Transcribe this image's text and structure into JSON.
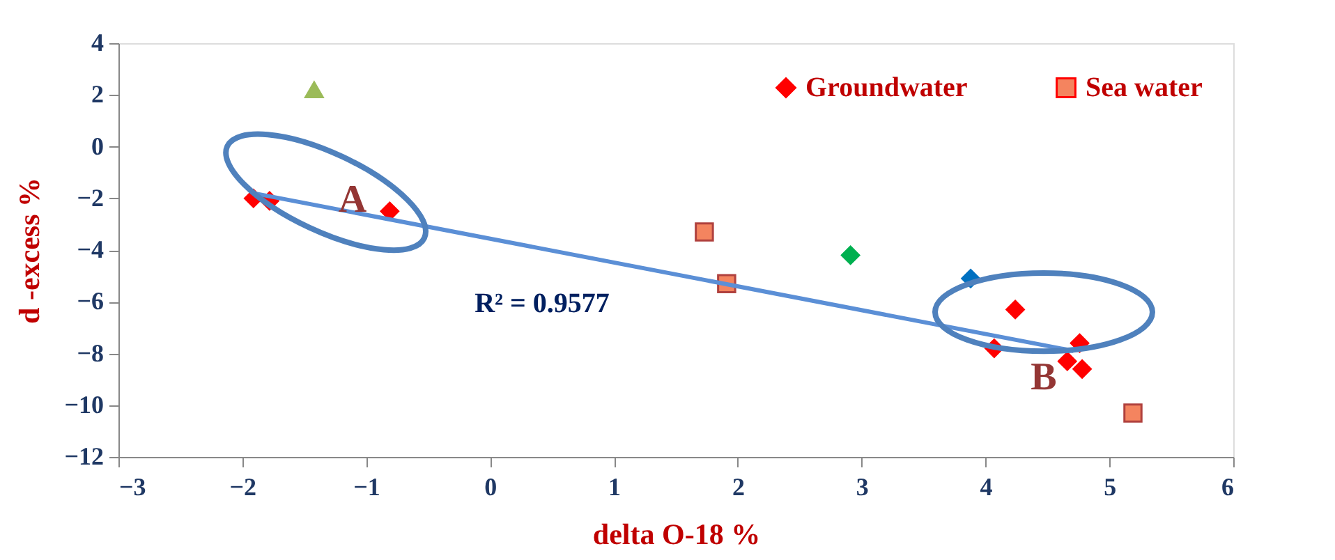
{
  "chart_data": {
    "type": "scatter",
    "xlabel": "delta O-18 %",
    "ylabel": "d -excess %",
    "xlim": [
      -3,
      6
    ],
    "xticks": [
      -3,
      -2,
      -1,
      0,
      1,
      2,
      3,
      4,
      5,
      6
    ],
    "ylim": [
      -12,
      4
    ],
    "yticks": [
      -12,
      -10,
      -8,
      -6,
      -4,
      -2,
      0,
      2,
      4
    ],
    "grid": false,
    "legend": "top right",
    "series": [
      {
        "name": "Groundwater",
        "color": "#ff0000",
        "marker": "diamond",
        "x": [
          -1.91,
          -1.78,
          -0.81,
          4.07,
          4.24,
          4.76,
          4.66,
          4.78
        ],
        "values": [
          -2.0,
          -2.1,
          -2.5,
          -7.8,
          -6.3,
          -7.6,
          -8.3,
          -8.6
        ]
      },
      {
        "name": "Sea water",
        "color": "#f4845f",
        "marker": "square",
        "x": [
          1.73,
          1.91,
          5.19
        ],
        "values": [
          -3.3,
          -5.3,
          -10.3
        ]
      },
      {
        "color": "#9bbb59",
        "marker": "triangle",
        "x": [
          -1.42
        ],
        "values": [
          2.2
        ]
      },
      {
        "color": "#00b050",
        "marker": "diamond",
        "x": [
          2.91
        ],
        "values": [
          -4.2
        ]
      },
      {
        "color": "#0070c0",
        "marker": "diamond",
        "x": [
          3.88
        ],
        "values": [
          -5.1
        ]
      },
      {
        "type": "line",
        "color": "#5b8fd6",
        "marker": "none",
        "x": [
          -1.91,
          4.71
        ],
        "values": [
          -1.8,
          -7.9
        ]
      }
    ],
    "annotations": [
      "A",
      "B",
      "R² = 0.9577"
    ]
  }
}
